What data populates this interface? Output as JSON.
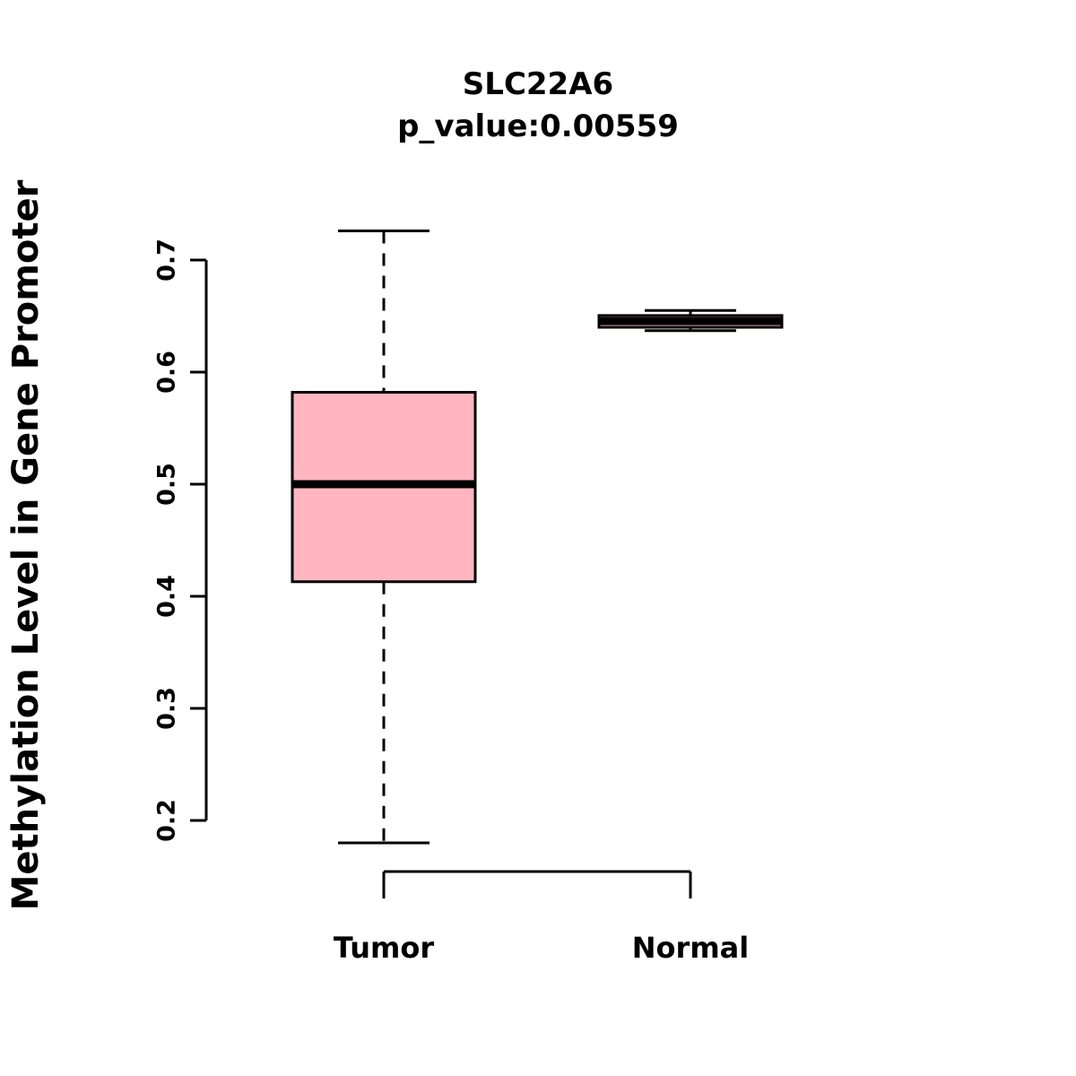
{
  "chart_data": {
    "type": "boxplot",
    "title": "SLC22A6",
    "subtitle": "p_value:0.00559",
    "ylabel": "Methylation Level in Gene Promoter",
    "xlabel": "",
    "ylim": [
      0.2,
      0.7
    ],
    "yticks": [
      0.2,
      0.3,
      0.4,
      0.5,
      0.6,
      0.7
    ],
    "grid": false,
    "legend": "none",
    "box_fill_color": "#FFB6C1",
    "line_color": "#000000",
    "groups": [
      {
        "name": "Tumor",
        "whisker_low": 0.18,
        "q1": 0.413,
        "median": 0.5,
        "q3": 0.582,
        "whisker_high": 0.726,
        "fill": "#FFB6C1"
      },
      {
        "name": "Normal",
        "whisker_low": 0.637,
        "q1": 0.64,
        "median": 0.6455,
        "q3": 0.6505,
        "whisker_high": 0.655,
        "fill": "#FFB6C1"
      }
    ]
  }
}
